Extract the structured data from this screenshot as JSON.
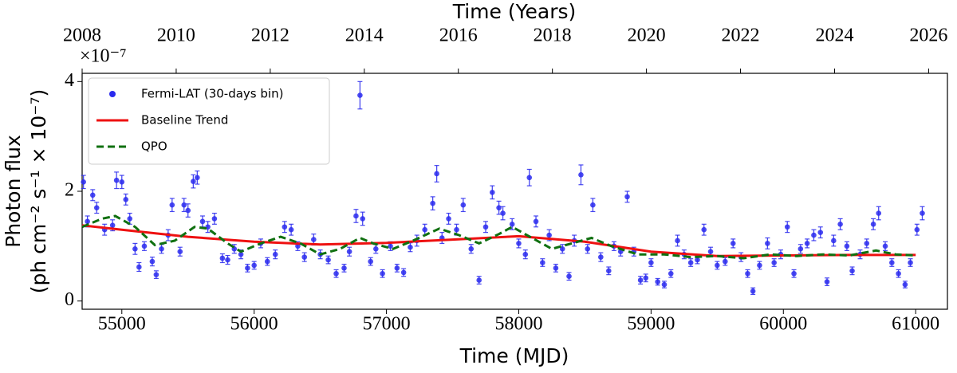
{
  "chart_data": {
    "type": "scatter",
    "title": "Time (Years)",
    "xlabel": "Time (MJD)",
    "ylabel": [
      "Photon flux",
      "(ph cm⁻² s⁻¹ × 10⁻⁷)"
    ],
    "y_offset_label": "×10⁻⁷",
    "xlim": [
      54700,
      61240
    ],
    "xticks": [
      55000,
      56000,
      57000,
      58000,
      59000,
      60000,
      61000
    ],
    "x2lim": [
      2008,
      2026.4
    ],
    "x2ticks": [
      2008,
      2010,
      2012,
      2014,
      2016,
      2018,
      2020,
      2022,
      2024,
      2026
    ],
    "ylim": [
      -0.15,
      4.15
    ],
    "yticks": [
      0,
      2,
      4
    ],
    "legend": "upper left",
    "series": [
      {
        "name": "Fermi-LAT (30-days bin)",
        "kind": "errorbar",
        "color": "#2a2aee",
        "x": [
          54710,
          54740,
          54780,
          54810,
          54870,
          54930,
          54960,
          55000,
          55030,
          55060,
          55100,
          55130,
          55170,
          55230,
          55260,
          55300,
          55350,
          55380,
          55440,
          55470,
          55500,
          55540,
          55570,
          55610,
          55650,
          55700,
          55760,
          55800,
          55850,
          55900,
          55950,
          56000,
          56050,
          56100,
          56160,
          56230,
          56280,
          56330,
          56380,
          56450,
          56500,
          56560,
          56620,
          56680,
          56720,
          56770,
          56800,
          56820,
          56880,
          56920,
          56970,
          57030,
          57080,
          57130,
          57180,
          57230,
          57290,
          57350,
          57380,
          57420,
          57470,
          57530,
          57580,
          57640,
          57700,
          57750,
          57800,
          57850,
          57880,
          57950,
          58000,
          58050,
          58080,
          58130,
          58180,
          58230,
          58280,
          58330,
          58380,
          58420,
          58470,
          58520,
          58560,
          58620,
          58680,
          58720,
          58770,
          58820,
          58870,
          58920,
          58960,
          59000,
          59050,
          59100,
          59150,
          59200,
          59250,
          59300,
          59350,
          59400,
          59450,
          59500,
          59560,
          59620,
          59680,
          59730,
          59770,
          59820,
          59880,
          59930,
          59980,
          60030,
          60080,
          60130,
          60180,
          60230,
          60280,
          60330,
          60380,
          60430,
          60480,
          60520,
          60580,
          60630,
          60680,
          60720,
          60770,
          60820,
          60870,
          60920,
          60960,
          61010,
          61050
        ],
        "values": [
          2.17,
          1.45,
          1.93,
          1.7,
          1.3,
          1.38,
          2.2,
          2.17,
          1.85,
          1.5,
          0.95,
          0.62,
          1.0,
          0.72,
          0.48,
          0.95,
          1.2,
          1.75,
          0.9,
          1.75,
          1.65,
          2.18,
          2.25,
          1.45,
          1.35,
          1.5,
          0.78,
          0.75,
          0.95,
          0.85,
          0.6,
          0.65,
          1.05,
          0.72,
          0.85,
          1.35,
          1.3,
          1.0,
          0.8,
          1.12,
          0.85,
          0.75,
          0.5,
          0.6,
          0.9,
          1.55,
          3.75,
          1.5,
          0.72,
          0.95,
          0.5,
          1.0,
          0.6,
          0.52,
          0.98,
          1.1,
          1.3,
          1.78,
          2.32,
          1.15,
          1.5,
          1.3,
          1.75,
          0.95,
          0.38,
          1.35,
          1.98,
          1.7,
          1.6,
          1.4,
          1.05,
          0.85,
          2.25,
          1.45,
          0.7,
          1.2,
          0.6,
          0.95,
          0.45,
          1.1,
          2.3,
          0.95,
          1.75,
          0.8,
          0.55,
          1.0,
          0.9,
          1.9,
          0.9,
          0.38,
          0.42,
          0.7,
          0.35,
          0.3,
          0.5,
          1.1,
          0.85,
          0.7,
          0.75,
          1.3,
          0.9,
          0.65,
          0.72,
          1.05,
          0.8,
          0.5,
          0.18,
          0.65,
          1.05,
          0.7,
          0.85,
          1.35,
          0.5,
          0.95,
          1.05,
          1.2,
          1.25,
          0.35,
          1.1,
          1.4,
          1.0,
          0.55,
          0.85,
          1.05,
          1.4,
          1.6,
          1.0,
          0.7,
          0.5,
          0.3,
          0.7,
          1.3,
          1.6
        ],
        "errors": [
          0.12,
          0.1,
          0.1,
          0.1,
          0.1,
          0.1,
          0.15,
          0.12,
          0.1,
          0.1,
          0.1,
          0.08,
          0.08,
          0.08,
          0.07,
          0.08,
          0.1,
          0.12,
          0.08,
          0.12,
          0.12,
          0.12,
          0.12,
          0.1,
          0.1,
          0.1,
          0.08,
          0.08,
          0.08,
          0.08,
          0.07,
          0.07,
          0.08,
          0.07,
          0.08,
          0.1,
          0.1,
          0.08,
          0.08,
          0.1,
          0.08,
          0.07,
          0.07,
          0.07,
          0.08,
          0.12,
          0.25,
          0.12,
          0.07,
          0.08,
          0.07,
          0.08,
          0.07,
          0.07,
          0.08,
          0.1,
          0.1,
          0.12,
          0.15,
          0.1,
          0.1,
          0.1,
          0.12,
          0.08,
          0.07,
          0.1,
          0.12,
          0.12,
          0.12,
          0.1,
          0.08,
          0.08,
          0.15,
          0.1,
          0.07,
          0.1,
          0.07,
          0.08,
          0.07,
          0.1,
          0.18,
          0.08,
          0.12,
          0.08,
          0.07,
          0.08,
          0.08,
          0.1,
          0.08,
          0.07,
          0.07,
          0.07,
          0.06,
          0.06,
          0.07,
          0.1,
          0.08,
          0.07,
          0.07,
          0.1,
          0.08,
          0.07,
          0.07,
          0.08,
          0.08,
          0.07,
          0.06,
          0.07,
          0.1,
          0.07,
          0.08,
          0.1,
          0.07,
          0.08,
          0.08,
          0.1,
          0.1,
          0.07,
          0.1,
          0.1,
          0.08,
          0.07,
          0.08,
          0.08,
          0.1,
          0.12,
          0.08,
          0.07,
          0.07,
          0.06,
          0.07,
          0.1,
          0.12
        ]
      },
      {
        "name": "Baseline Trend",
        "kind": "line",
        "color": "#ee1111",
        "x": [
          54700,
          55000,
          55500,
          56000,
          56500,
          57000,
          57500,
          58000,
          58500,
          59000,
          59500,
          60000,
          60500,
          61000
        ],
        "values": [
          1.38,
          1.3,
          1.17,
          1.08,
          1.03,
          1.06,
          1.12,
          1.18,
          1.08,
          0.9,
          0.82,
          0.83,
          0.84,
          0.84
        ]
      },
      {
        "name": "QPO",
        "kind": "dashed",
        "color": "#107010",
        "x": [
          54700,
          54850,
          54950,
          55100,
          55250,
          55400,
          55550,
          55650,
          55800,
          55900,
          56050,
          56200,
          56350,
          56500,
          56650,
          56800,
          56900,
          57050,
          57200,
          57400,
          57550,
          57700,
          57850,
          57950,
          58100,
          58250,
          58400,
          58550,
          58700,
          58900,
          59100,
          59300,
          59500,
          59700,
          59900,
          60100,
          60300,
          60500,
          60700,
          60850,
          61000
        ],
        "values": [
          1.35,
          1.5,
          1.55,
          1.35,
          1.02,
          1.1,
          1.35,
          1.32,
          1.05,
          0.9,
          1.05,
          1.17,
          1.05,
          0.85,
          0.95,
          1.15,
          1.05,
          0.95,
          1.1,
          1.32,
          1.2,
          1.05,
          1.22,
          1.35,
          1.15,
          0.95,
          1.05,
          1.15,
          1.0,
          0.85,
          0.85,
          0.8,
          0.82,
          0.78,
          0.85,
          0.82,
          0.85,
          0.83,
          0.92,
          0.85,
          0.83
        ]
      }
    ]
  }
}
